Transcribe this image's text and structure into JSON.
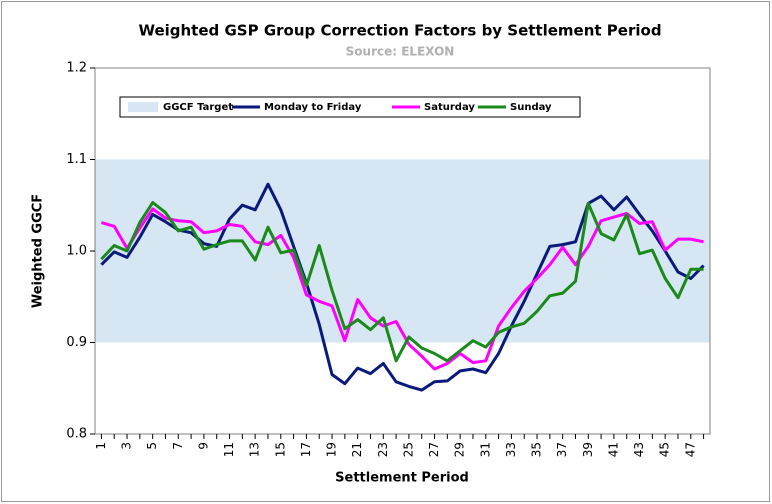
{
  "chart_data": {
    "type": "line",
    "title": "Weighted GSP Group Correction Factors by Settlement Period",
    "subtitle": "Source: ELEXON",
    "x_label": "Settlement Period",
    "y_label": "Weighted GGCF",
    "categories": [
      1,
      null,
      3,
      null,
      5,
      null,
      7,
      null,
      9,
      null,
      11,
      null,
      13,
      null,
      15,
      null,
      17,
      null,
      19,
      null,
      21,
      null,
      23,
      null,
      25,
      null,
      27,
      null,
      29,
      null,
      31,
      null,
      33,
      null,
      35,
      null,
      37,
      null,
      39,
      null,
      41,
      null,
      43,
      null,
      45,
      null,
      47,
      null
    ],
    "band": {
      "name": "GGCF Target",
      "color": "#d6e6f2",
      "range": [
        0.9,
        1.1
      ]
    },
    "series": [
      {
        "name": "Monday to Friday",
        "color": "#0a1a7a",
        "values": [
          0.985,
          0.999,
          0.993,
          1.015,
          1.04,
          1.032,
          1.023,
          1.02,
          1.008,
          1.005,
          1.035,
          1.05,
          1.045,
          1.073,
          1.045,
          1.005,
          0.965,
          0.92,
          0.865,
          0.855,
          0.872,
          0.866,
          0.877,
          0.857,
          0.852,
          0.848,
          0.857,
          0.858,
          0.869,
          0.871,
          0.867,
          0.888,
          0.918,
          0.945,
          0.975,
          1.005,
          1.007,
          1.01,
          1.052,
          1.06,
          1.045,
          1.059,
          1.04,
          1.022,
          1.0,
          0.977,
          0.97,
          0.984
        ]
      },
      {
        "name": "Saturday",
        "color": "#ff00ff",
        "values": [
          1.031,
          1.027,
          1.003,
          1.025,
          1.046,
          1.036,
          1.033,
          1.032,
          1.02,
          1.022,
          1.029,
          1.027,
          1.01,
          1.007,
          1.017,
          0.993,
          0.952,
          0.945,
          0.94,
          0.902,
          0.947,
          0.927,
          0.918,
          0.923,
          0.898,
          0.885,
          0.871,
          0.877,
          0.888,
          0.878,
          0.88,
          0.918,
          0.938,
          0.956,
          0.97,
          0.985,
          1.004,
          0.985,
          1.005,
          1.033,
          1.037,
          1.041,
          1.03,
          1.032,
          1.001,
          1.013,
          1.013,
          1.01
        ]
      },
      {
        "name": "Sunday",
        "color": "#1a8a1a",
        "values": [
          0.991,
          1.006,
          1.0,
          1.031,
          1.053,
          1.042,
          1.022,
          1.026,
          1.002,
          1.007,
          1.011,
          1.011,
          0.99,
          1.026,
          0.998,
          1.001,
          0.962,
          1.006,
          0.957,
          0.915,
          0.925,
          0.914,
          0.927,
          0.88,
          0.906,
          0.894,
          0.888,
          0.88,
          0.891,
          0.902,
          0.895,
          0.911,
          0.917,
          0.921,
          0.934,
          0.951,
          0.954,
          0.967,
          1.052,
          1.019,
          1.012,
          1.04,
          0.997,
          1.001,
          0.97,
          0.949,
          0.98,
          0.98
        ]
      }
    ],
    "ylim": [
      0.8,
      1.2
    ],
    "yticks": [
      0.8,
      0.9,
      {
        "value": 1,
        "label": "1.0"
      },
      1.1,
      1.2
    ],
    "grid": false
  }
}
